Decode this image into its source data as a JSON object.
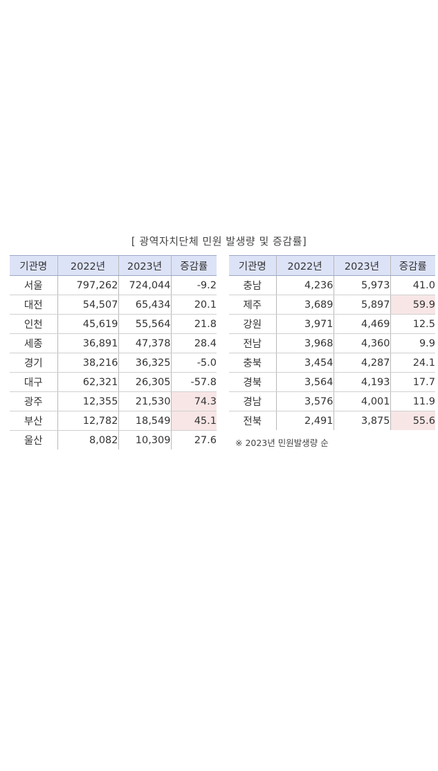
{
  "caption": "[ 광역자치단체 민원 발생량 및 증감률]",
  "headers": [
    "기관명",
    "2022년",
    "2023년",
    "증감률"
  ],
  "left_rows": [
    {
      "name": "서울",
      "y2022": "797,262",
      "y2023": "724,044",
      "rate": "-9.2",
      "highlight": false
    },
    {
      "name": "대전",
      "y2022": "54,507",
      "y2023": "65,434",
      "rate": "20.1",
      "highlight": false
    },
    {
      "name": "인천",
      "y2022": "45,619",
      "y2023": "55,564",
      "rate": "21.8",
      "highlight": false
    },
    {
      "name": "세종",
      "y2022": "36,891",
      "y2023": "47,378",
      "rate": "28.4",
      "highlight": false
    },
    {
      "name": "경기",
      "y2022": "38,216",
      "y2023": "36,325",
      "rate": "-5.0",
      "highlight": false
    },
    {
      "name": "대구",
      "y2022": "62,321",
      "y2023": "26,305",
      "rate": "-57.8",
      "highlight": false
    },
    {
      "name": "광주",
      "y2022": "12,355",
      "y2023": "21,530",
      "rate": "74.3",
      "highlight": true
    },
    {
      "name": "부산",
      "y2022": "12,782",
      "y2023": "18,549",
      "rate": "45.1",
      "highlight": true
    },
    {
      "name": "울산",
      "y2022": "8,082",
      "y2023": "10,309",
      "rate": "27.6",
      "highlight": false
    }
  ],
  "right_rows": [
    {
      "name": "충남",
      "y2022": "4,236",
      "y2023": "5,973",
      "rate": "41.0",
      "highlight": false
    },
    {
      "name": "제주",
      "y2022": "3,689",
      "y2023": "5,897",
      "rate": "59.9",
      "highlight": true
    },
    {
      "name": "강원",
      "y2022": "3,971",
      "y2023": "4,469",
      "rate": "12.5",
      "highlight": false
    },
    {
      "name": "전남",
      "y2022": "3,968",
      "y2023": "4,360",
      "rate": "9.9",
      "highlight": false
    },
    {
      "name": "충북",
      "y2022": "3,454",
      "y2023": "4,287",
      "rate": "24.1",
      "highlight": false
    },
    {
      "name": "경북",
      "y2022": "3,564",
      "y2023": "4,193",
      "rate": "17.7",
      "highlight": false
    },
    {
      "name": "경남",
      "y2022": "3,576",
      "y2023": "4,001",
      "rate": "11.9",
      "highlight": false
    },
    {
      "name": "전북",
      "y2022": "2,491",
      "y2023": "3,875",
      "rate": "55.6",
      "highlight": true
    }
  ],
  "note": "※ 2023년 민원발생량 순",
  "colors": {
    "header_bg": "#dde3f7",
    "highlight_bg": "#f8e6e6"
  }
}
